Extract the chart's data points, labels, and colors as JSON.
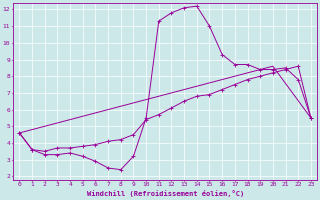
{
  "xlabel": "Windchill (Refroidissement éolien,°C)",
  "background_color": "#cce8e8",
  "grid_color": "#ffffff",
  "line_color": "#990099",
  "xlim": [
    -0.5,
    23.5
  ],
  "ylim": [
    1.8,
    12.4
  ],
  "xticks": [
    0,
    1,
    2,
    3,
    4,
    5,
    6,
    7,
    8,
    9,
    10,
    11,
    12,
    13,
    14,
    15,
    16,
    17,
    18,
    19,
    20,
    21,
    22,
    23
  ],
  "yticks": [
    2,
    3,
    4,
    5,
    6,
    7,
    8,
    9,
    10,
    11,
    12
  ],
  "line1_x": [
    0,
    1,
    2,
    3,
    4,
    5,
    6,
    7,
    8,
    9,
    10,
    11,
    12,
    13,
    14,
    15,
    16,
    17,
    18,
    19,
    20,
    21,
    22,
    23
  ],
  "line1_y": [
    4.6,
    3.6,
    3.3,
    3.3,
    3.4,
    3.2,
    2.9,
    2.5,
    2.4,
    3.2,
    5.5,
    11.3,
    11.8,
    12.1,
    12.2,
    11.0,
    9.3,
    8.7,
    8.7,
    8.4,
    8.4,
    8.5,
    7.8,
    5.5
  ],
  "line2_x": [
    0,
    1,
    2,
    3,
    4,
    5,
    6,
    7,
    8,
    9,
    10,
    11,
    12,
    13,
    14,
    15,
    16,
    17,
    18,
    19,
    20,
    21,
    22,
    23
  ],
  "line2_y": [
    4.6,
    3.6,
    3.5,
    3.7,
    3.7,
    3.8,
    3.9,
    4.1,
    4.2,
    4.5,
    5.4,
    5.7,
    6.1,
    6.5,
    6.8,
    6.9,
    7.2,
    7.5,
    7.8,
    8.0,
    8.2,
    8.4,
    8.6,
    5.5
  ],
  "line3_x": [
    0,
    20,
    23
  ],
  "line3_y": [
    4.6,
    8.6,
    5.5
  ]
}
